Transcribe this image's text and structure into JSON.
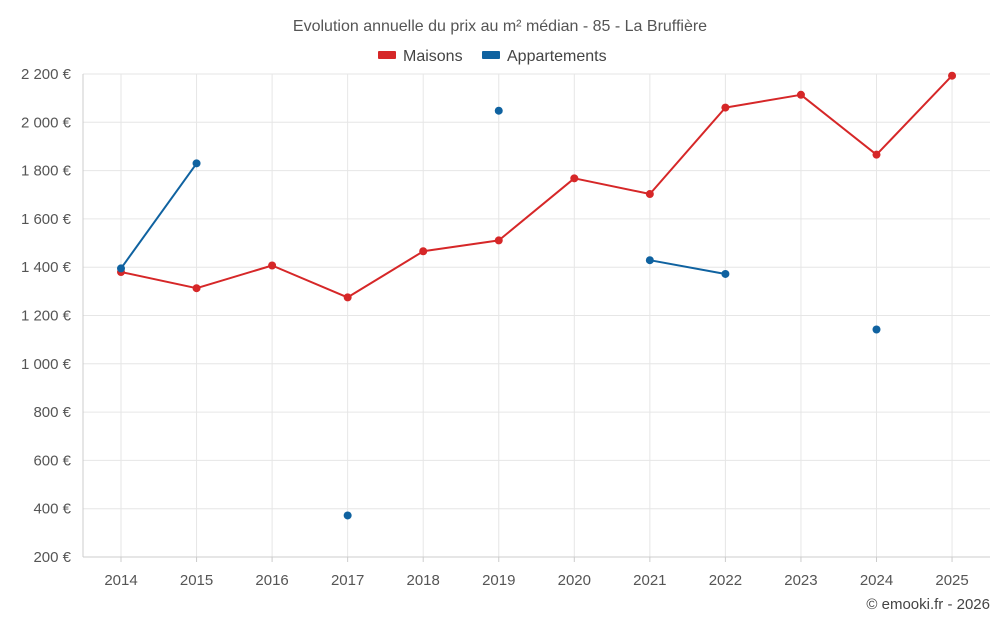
{
  "chart_data": {
    "type": "line",
    "title": "Evolution annuelle du prix au m² médian - 85 - La Bruffière",
    "categories": [
      "2014",
      "2015",
      "2016",
      "2017",
      "2018",
      "2019",
      "2020",
      "2021",
      "2022",
      "2023",
      "2024",
      "2025"
    ],
    "ylim": [
      200,
      2200
    ],
    "yticks": [
      200,
      400,
      600,
      800,
      1000,
      1200,
      1400,
      1600,
      1800,
      2000,
      2200
    ],
    "ytick_labels": [
      "200 €",
      "400 €",
      "600 €",
      "800 €",
      "1 000 €",
      "1 200 €",
      "1 400 €",
      "1 600 €",
      "1 800 €",
      "2 000 €",
      "2 200 €"
    ],
    "grid": true,
    "legend_position": "top-center",
    "series": [
      {
        "name": "Maisons",
        "color": "#d62728",
        "values": [
          1380,
          1313,
          1407,
          1275,
          1466,
          1511,
          1768,
          1703,
          2061,
          2114,
          1866,
          2193
        ]
      },
      {
        "name": "Appartements",
        "color": "#0f62a0",
        "values": [
          1395,
          1830,
          null,
          372,
          null,
          2048,
          null,
          1429,
          1372,
          null,
          1142,
          null
        ]
      }
    ]
  },
  "credit": "© emooki.fr - 2026"
}
